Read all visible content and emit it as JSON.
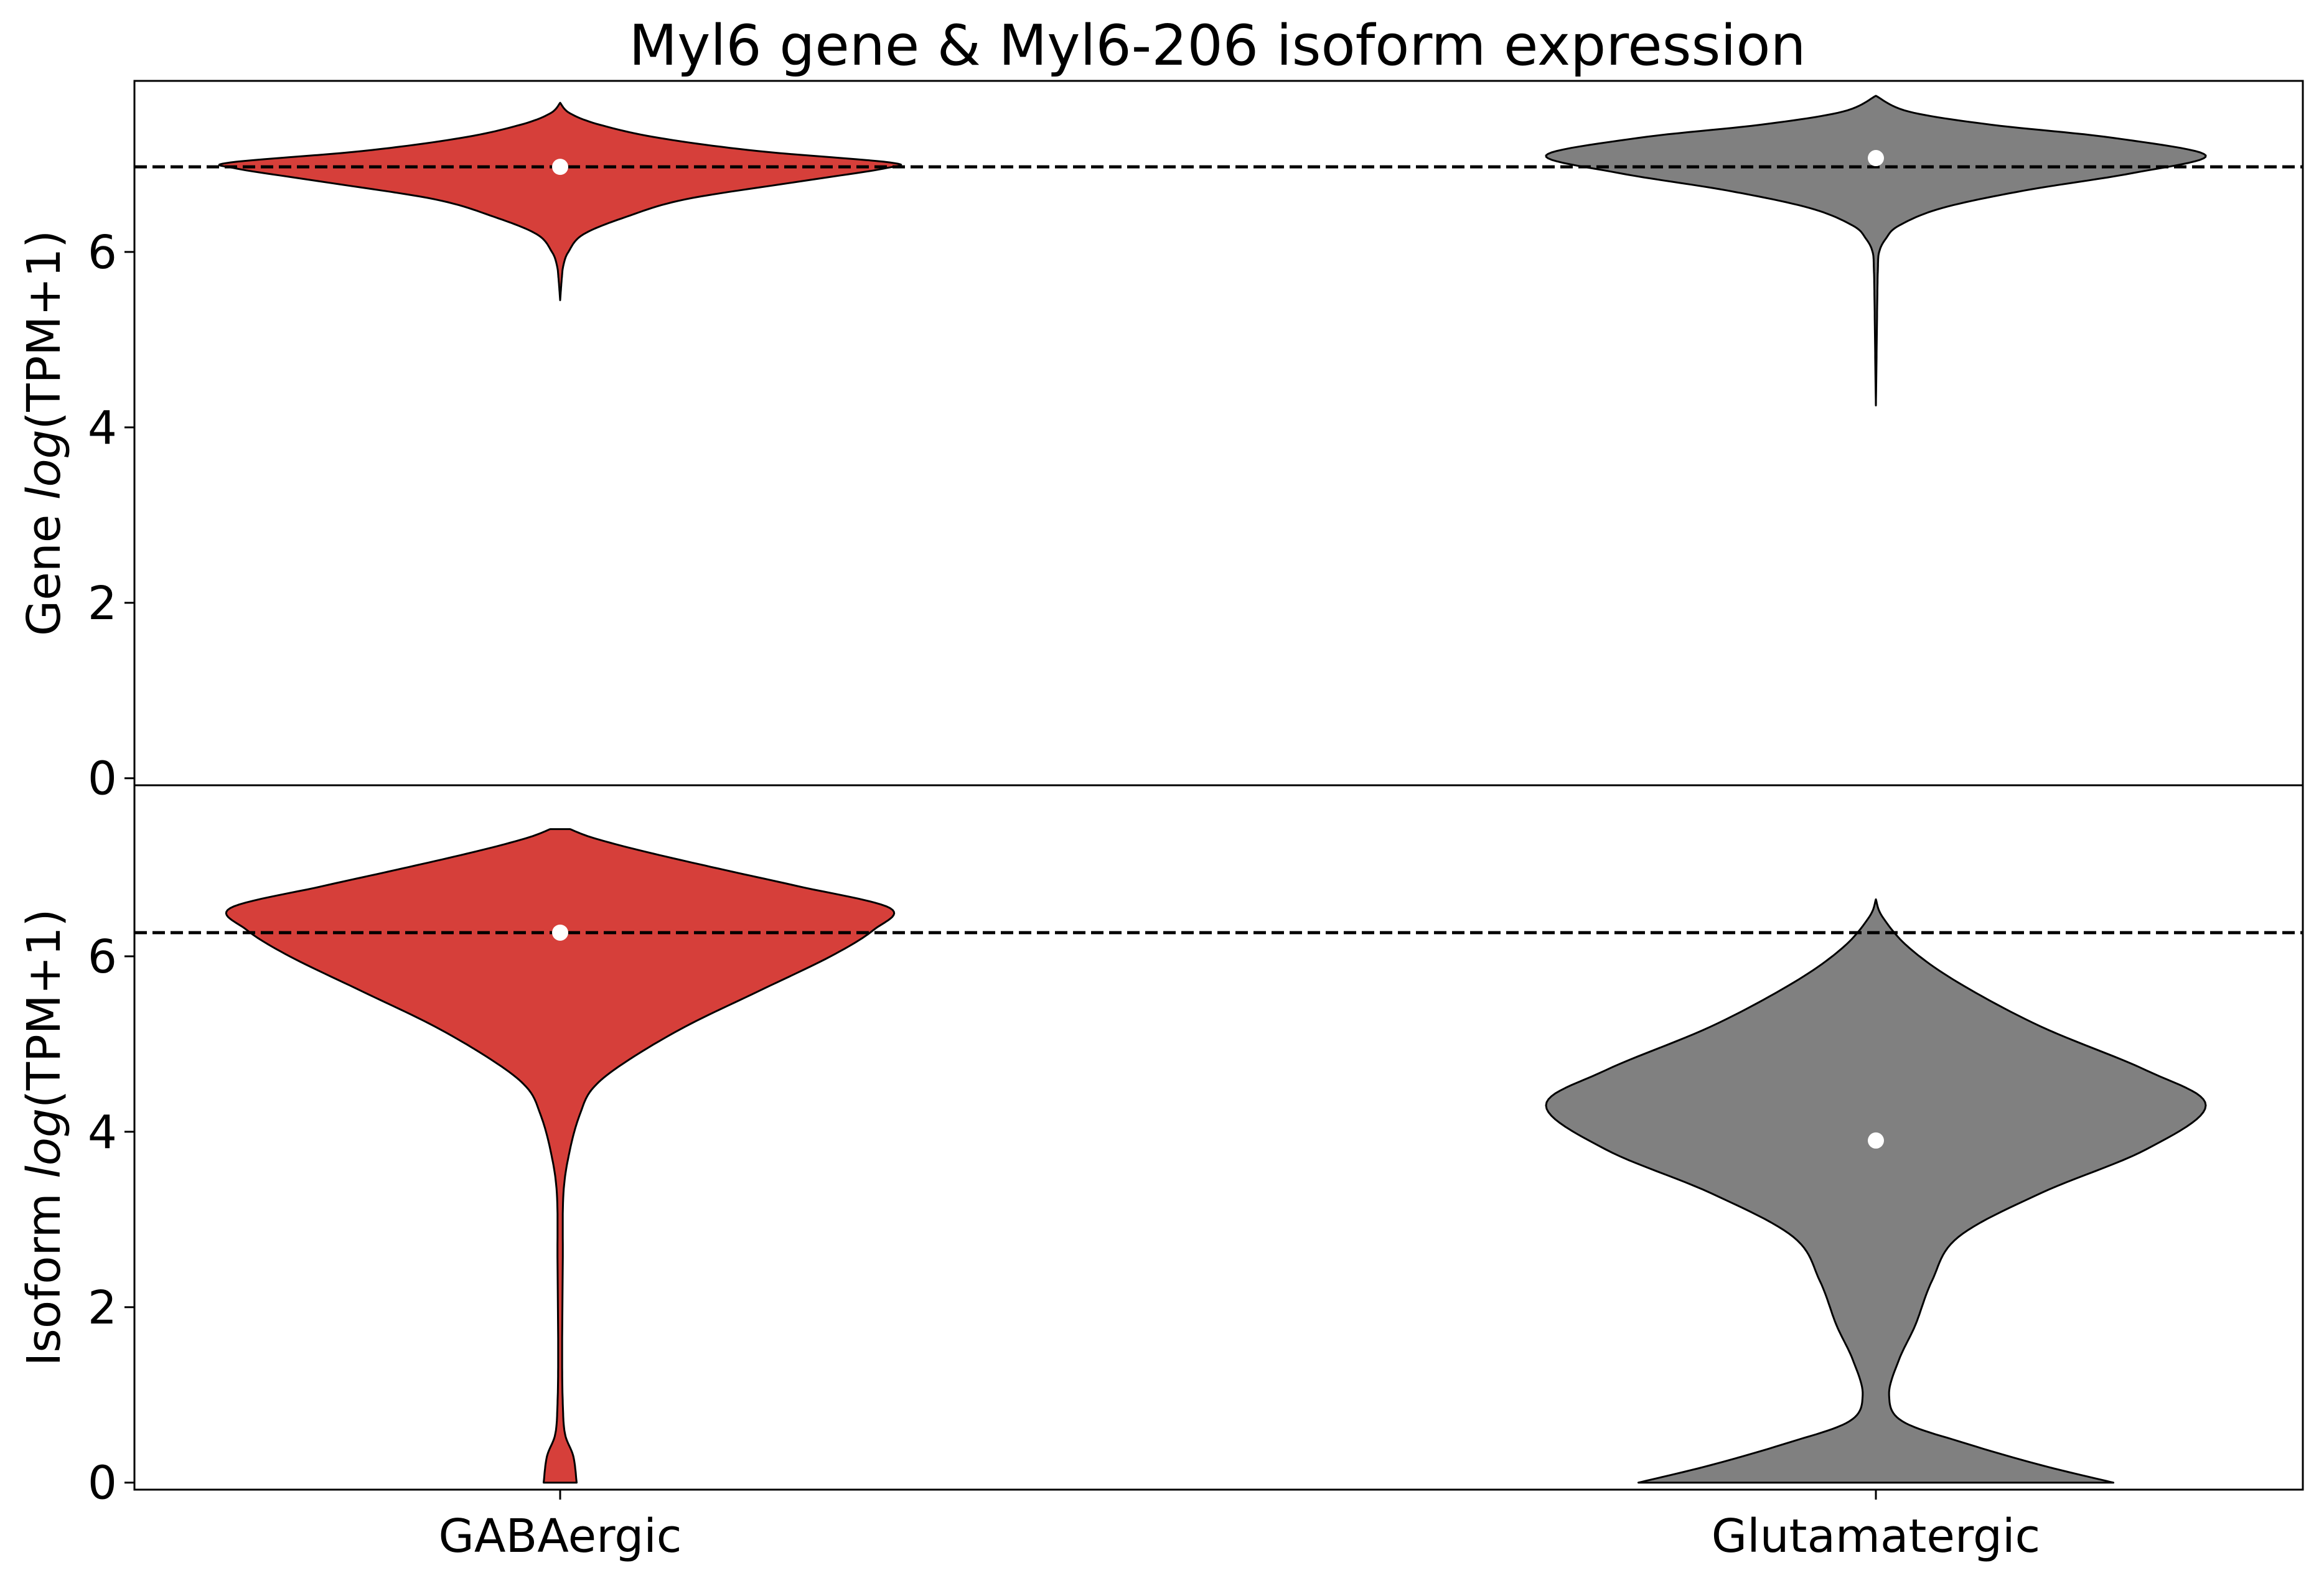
{
  "chart_data": {
    "type": "violin",
    "title": "Myl6 gene & Myl6-206 isoform expression",
    "categories": [
      "GABAergic",
      "Glutamatergic"
    ],
    "category_colors": {
      "GABAergic": "#d63f3a",
      "Glutamatergic": "#808080"
    },
    "panels": [
      {
        "name": "gene",
        "ylabel_prefix": "Gene ",
        "ylabel_italic": "log",
        "ylabel_suffix": "(TPM+1)",
        "ylim": [
          -0.08,
          7.95
        ],
        "yticks": [
          0,
          2,
          4,
          6
        ],
        "ytick_labels": [
          "0",
          "2",
          "4",
          "6"
        ],
        "reference_line": 6.97,
        "violins": [
          {
            "category": "GABAergic",
            "median": 6.97,
            "min": 5.45,
            "max": 7.7,
            "density": [
              [
                5.45,
                0.0
              ],
              [
                5.7,
                0.005
              ],
              [
                5.85,
                0.01
              ],
              [
                6.0,
                0.025
              ],
              [
                6.2,
                0.07
              ],
              [
                6.4,
                0.2
              ],
              [
                6.6,
                0.38
              ],
              [
                6.8,
                0.72
              ],
              [
                6.95,
                0.98
              ],
              [
                7.02,
                1.0
              ],
              [
                7.15,
                0.6
              ],
              [
                7.3,
                0.3
              ],
              [
                7.45,
                0.12
              ],
              [
                7.58,
                0.03
              ],
              [
                7.7,
                0.0
              ]
            ]
          },
          {
            "category": "Glutamatergic",
            "median": 7.07,
            "min": 4.25,
            "max": 7.78,
            "density": [
              [
                4.25,
                0.0
              ],
              [
                4.8,
                0.002
              ],
              [
                5.4,
                0.004
              ],
              [
                5.8,
                0.006
              ],
              [
                6.0,
                0.01
              ],
              [
                6.15,
                0.03
              ],
              [
                6.3,
                0.07
              ],
              [
                6.5,
                0.2
              ],
              [
                6.7,
                0.45
              ],
              [
                6.9,
                0.78
              ],
              [
                7.1,
                1.0
              ],
              [
                7.3,
                0.72
              ],
              [
                7.45,
                0.35
              ],
              [
                7.6,
                0.1
              ],
              [
                7.78,
                0.0
              ]
            ]
          }
        ]
      },
      {
        "name": "isoform",
        "ylabel_prefix": "Isoform ",
        "ylabel_italic": "log",
        "ylabel_suffix": "(TPM+1)",
        "ylim": [
          -0.08,
          7.95
        ],
        "yticks": [
          0,
          2,
          4,
          6
        ],
        "ytick_labels": [
          "0",
          "2",
          "4",
          "6"
        ],
        "reference_line": 6.27,
        "violins": [
          {
            "category": "GABAergic",
            "median": 6.27,
            "min": 0.0,
            "max": 7.45,
            "density": [
              [
                0.0,
                0.05
              ],
              [
                0.3,
                0.04
              ],
              [
                0.55,
                0.015
              ],
              [
                0.9,
                0.008
              ],
              [
                1.5,
                0.006
              ],
              [
                2.5,
                0.008
              ],
              [
                3.3,
                0.01
              ],
              [
                3.8,
                0.03
              ],
              [
                4.2,
                0.06
              ],
              [
                4.5,
                0.1
              ],
              [
                4.8,
                0.2
              ],
              [
                5.2,
                0.38
              ],
              [
                5.6,
                0.6
              ],
              [
                6.0,
                0.82
              ],
              [
                6.3,
                0.95
              ],
              [
                6.55,
                1.0
              ],
              [
                6.8,
                0.72
              ],
              [
                7.0,
                0.48
              ],
              [
                7.2,
                0.25
              ],
              [
                7.35,
                0.1
              ],
              [
                7.45,
                0.03
              ]
            ]
          },
          {
            "category": "Glutamatergic",
            "median": 3.9,
            "min": 0.0,
            "max": 6.65,
            "density": [
              [
                0.0,
                0.72
              ],
              [
                0.2,
                0.5
              ],
              [
                0.45,
                0.27
              ],
              [
                0.7,
                0.08
              ],
              [
                1.0,
                0.04
              ],
              [
                1.4,
                0.07
              ],
              [
                1.8,
                0.12
              ],
              [
                2.3,
                0.17
              ],
              [
                2.8,
                0.25
              ],
              [
                3.3,
                0.5
              ],
              [
                3.8,
                0.82
              ],
              [
                4.3,
                1.0
              ],
              [
                4.7,
                0.82
              ],
              [
                5.2,
                0.5
              ],
              [
                5.7,
                0.25
              ],
              [
                6.1,
                0.1
              ],
              [
                6.45,
                0.02
              ],
              [
                6.65,
                0.0
              ]
            ]
          }
        ]
      }
    ]
  }
}
